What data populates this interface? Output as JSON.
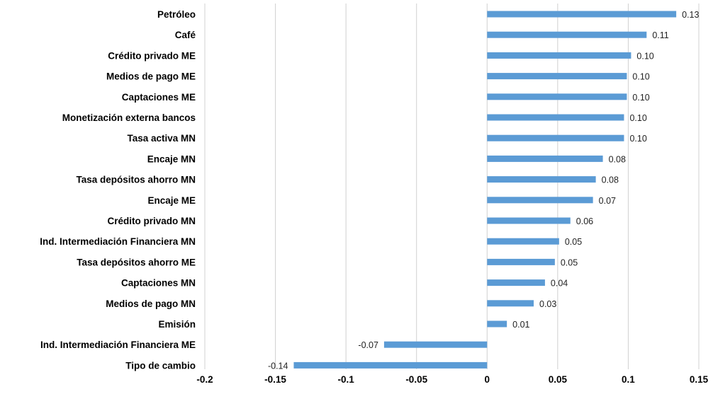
{
  "chart_data": {
    "type": "bar",
    "orientation": "horizontal",
    "categories": [
      "Petróleo",
      "Café",
      "Crédito privado ME",
      "Medios de pago ME",
      "Captaciones ME",
      "Monetización externa bancos",
      "Tasa activa MN",
      "Encaje MN",
      "Tasa depósitos ahorro MN",
      "Encaje ME",
      "Crédito privado MN",
      "Ind. Intermediación Financiera MN",
      "Tasa depósitos ahorro ME",
      "Captaciones MN",
      "Medios de pago MN",
      "Emisión",
      "Ind. Intermediación Financiera ME",
      "Tipo de cambio"
    ],
    "values": [
      0.134,
      0.113,
      0.102,
      0.099,
      0.099,
      0.097,
      0.097,
      0.082,
      0.077,
      0.075,
      0.059,
      0.051,
      0.048,
      0.041,
      0.033,
      0.014,
      -0.073,
      -0.137
    ],
    "data_labels": [
      "0.13",
      "0.11",
      "0.10",
      "0.10",
      "0.10",
      "0.10",
      "0.10",
      "0.08",
      "0.08",
      "0.07",
      "0.06",
      "0.05",
      "0.05",
      "0.04",
      "0.03",
      "0.01",
      "-0.07",
      "-0.14"
    ],
    "xlim": [
      -0.2,
      0.15
    ],
    "xticks": [
      -0.2,
      -0.15,
      -0.1,
      -0.05,
      0,
      0.05,
      0.1,
      0.15
    ],
    "xtick_labels": [
      "-0.2",
      "-0.15",
      "-0.1",
      "-0.05",
      "0",
      "0.05",
      "0.1",
      "0.15"
    ],
    "grid": true,
    "legend": "none",
    "bar_color": "#5B9BD5",
    "title": "",
    "xlabel": "",
    "ylabel": ""
  }
}
